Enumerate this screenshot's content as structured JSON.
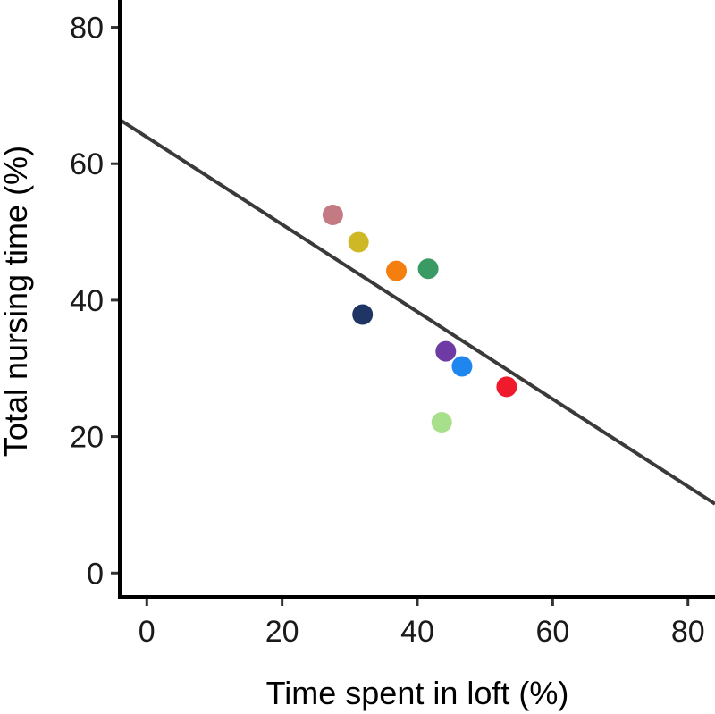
{
  "chart_data": {
    "type": "scatter",
    "xlabel": "Time spent in loft (%)",
    "ylabel": "Total nursing time (%)",
    "xlim": [
      -4,
      84
    ],
    "ylim": [
      -3.5,
      84
    ],
    "x_ticks": [
      0,
      20,
      40,
      60,
      80
    ],
    "y_ticks": [
      0,
      20,
      40,
      60,
      80
    ],
    "grid": false,
    "points": [
      {
        "x": 27.5,
        "y": 52.5,
        "color": "#c47a82"
      },
      {
        "x": 31.3,
        "y": 48.5,
        "color": "#cfb826"
      },
      {
        "x": 36.9,
        "y": 44.3,
        "color": "#f47f0f"
      },
      {
        "x": 41.6,
        "y": 44.6,
        "color": "#3a9a63"
      },
      {
        "x": 31.9,
        "y": 37.9,
        "color": "#1f3664"
      },
      {
        "x": 44.2,
        "y": 32.5,
        "color": "#6e3aa3"
      },
      {
        "x": 46.6,
        "y": 30.3,
        "color": "#1f86f0"
      },
      {
        "x": 53.2,
        "y": 27.3,
        "color": "#ef1a2c"
      },
      {
        "x": 43.6,
        "y": 22.1,
        "color": "#a7df8b"
      }
    ],
    "trend_line": {
      "intercept": 63.9,
      "slope": -0.64,
      "color": "#3a3a3a"
    }
  }
}
